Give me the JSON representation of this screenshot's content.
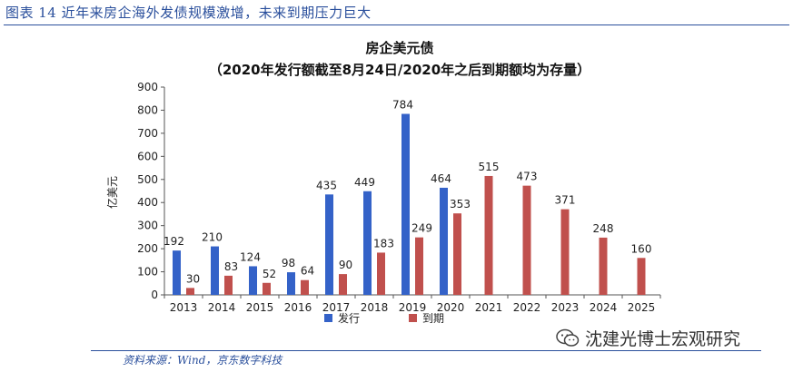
{
  "figure": {
    "title": "图表 14 近年来房企海外发债规模激增，未来到期压力巨大",
    "source": "资料来源：Wind，京东数字科技",
    "watermark": "沈建光博士宏观研究"
  },
  "colors": {
    "issue": "#3462c8",
    "due": "#c0504d",
    "title_blue": "#2a4f9c"
  },
  "chart_data": {
    "type": "bar",
    "title": "房企美元债",
    "subtitle": "（2020年发行额截至8月24日/2020年之后到期额均为存量）",
    "ylabel": "亿美元",
    "xlabel": "",
    "ylim": [
      0,
      900
    ],
    "yticks": [
      0,
      100,
      200,
      300,
      400,
      500,
      600,
      700,
      800,
      900
    ],
    "grid": false,
    "legend_position": "bottom",
    "categories": [
      "2013",
      "2014",
      "2015",
      "2016",
      "2017",
      "2018",
      "2019",
      "2020",
      "2021",
      "2022",
      "2023",
      "2024",
      "2025"
    ],
    "series": [
      {
        "name": "发行",
        "values": [
          192,
          210,
          124,
          98,
          435,
          449,
          784,
          464,
          null,
          null,
          null,
          null,
          null
        ]
      },
      {
        "name": "到期",
        "values": [
          30,
          83,
          52,
          64,
          90,
          183,
          249,
          353,
          515,
          473,
          371,
          248,
          160
        ]
      }
    ]
  }
}
